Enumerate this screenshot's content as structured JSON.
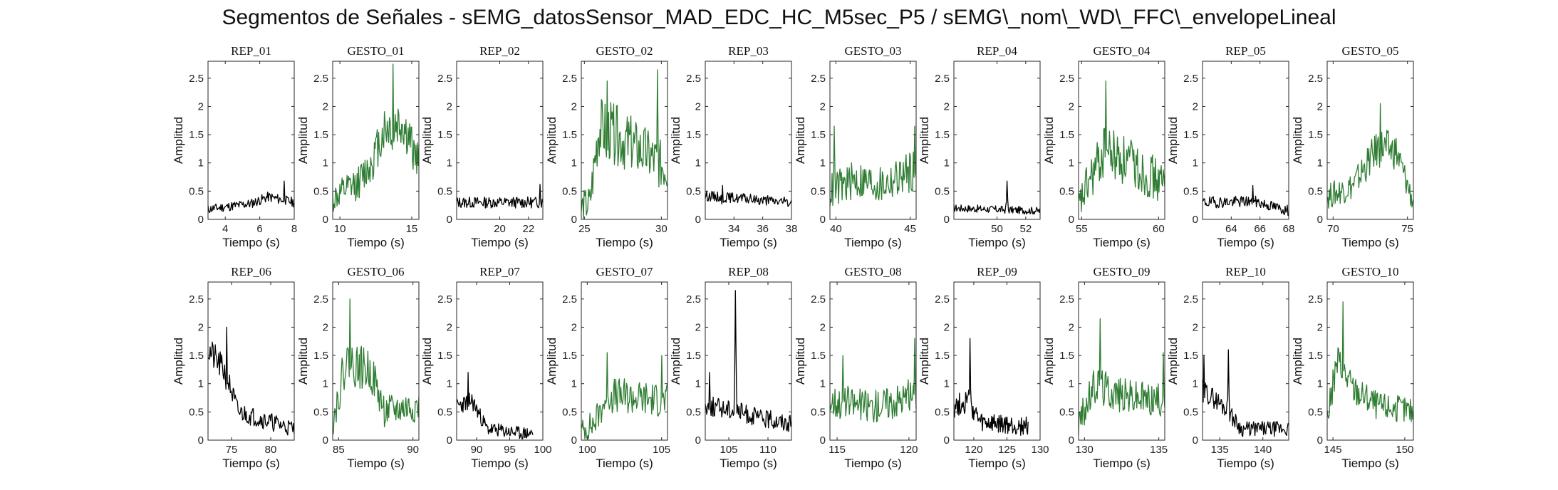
{
  "figure": {
    "title": "Segmentos de Señales - sEMG_datosSensor_MAD_EDC_HC_M5sec_P5 / sEMG\\_nom\\_WD\\_FFC\\_envelopeLineal"
  },
  "colors": {
    "rep": "#000000",
    "gesto": "#2e7d32"
  },
  "chart_data": [
    {
      "type": "line",
      "title": "REP_01",
      "xlabel": "Tiempo (s)",
      "ylabel": "Amplitud",
      "xlim": [
        3,
        8
      ],
      "ylim": [
        0,
        2.8
      ],
      "xticks": [
        4,
        6,
        8
      ],
      "yticks": [
        0,
        0.5,
        1,
        1.5,
        2,
        2.5
      ],
      "color": "#000000",
      "seed": 11,
      "profile": [
        [
          0,
          0.18
        ],
        [
          0.5,
          0.28
        ],
        [
          0.7,
          0.4
        ],
        [
          1,
          0.3
        ]
      ],
      "noise": 0.12,
      "spikes": [
        [
          0.88,
          0.68
        ]
      ]
    },
    {
      "type": "line",
      "title": "GESTO_01",
      "xlabel": "Tiempo (s)",
      "ylabel": "Amplitud",
      "xlim": [
        9.5,
        15.5
      ],
      "ylim": [
        0,
        2.8
      ],
      "xticks": [
        10,
        15
      ],
      "yticks": [
        0,
        0.5,
        1,
        1.5,
        2,
        2.5
      ],
      "color": "#2e7d32",
      "seed": 12,
      "profile": [
        [
          0,
          0.35
        ],
        [
          0.3,
          0.65
        ],
        [
          0.45,
          1.0
        ],
        [
          0.6,
          1.6
        ],
        [
          0.8,
          1.7
        ],
        [
          1,
          1.0
        ]
      ],
      "noise": 0.35,
      "spikes": [
        [
          0.7,
          2.75
        ]
      ]
    },
    {
      "type": "line",
      "title": "REP_02",
      "xlabel": "Tiempo (s)",
      "ylabel": "Amplitud",
      "xlim": [
        17,
        23
      ],
      "ylim": [
        0,
        2.8
      ],
      "xticks": [
        20,
        22
      ],
      "yticks": [
        0,
        0.5,
        1,
        1.5,
        2,
        2.5
      ],
      "color": "#000000",
      "seed": 13,
      "profile": [
        [
          0,
          0.3
        ],
        [
          1,
          0.3
        ]
      ],
      "noise": 0.14,
      "spikes": [
        [
          0.97,
          0.62
        ]
      ]
    },
    {
      "type": "line",
      "title": "GESTO_02",
      "xlabel": "Tiempo (s)",
      "ylabel": "Amplitud",
      "xlim": [
        24.8,
        30.4
      ],
      "ylim": [
        0,
        2.8
      ],
      "xticks": [
        25,
        30
      ],
      "yticks": [
        0,
        0.5,
        1,
        1.5,
        2,
        2.5
      ],
      "color": "#2e7d32",
      "seed": 14,
      "profile": [
        [
          0,
          0.2
        ],
        [
          0.1,
          0.3
        ],
        [
          0.2,
          1.6
        ],
        [
          0.4,
          1.5
        ],
        [
          0.7,
          1.2
        ],
        [
          1,
          0.9
        ]
      ],
      "noise": 0.45,
      "spikes": [
        [
          0.3,
          2.45
        ],
        [
          0.88,
          2.65
        ]
      ]
    },
    {
      "type": "line",
      "title": "REP_03",
      "xlabel": "Tiempo (s)",
      "ylabel": "Amplitud",
      "xlim": [
        32,
        38
      ],
      "ylim": [
        0,
        2.8
      ],
      "xticks": [
        34,
        36,
        38
      ],
      "yticks": [
        0,
        0.5,
        1,
        1.5,
        2,
        2.5
      ],
      "color": "#000000",
      "seed": 15,
      "profile": [
        [
          0,
          0.42
        ],
        [
          1,
          0.3
        ]
      ],
      "noise": 0.12,
      "spikes": [
        [
          0.2,
          0.6
        ]
      ]
    },
    {
      "type": "line",
      "title": "GESTO_03",
      "xlabel": "Tiempo (s)",
      "ylabel": "Amplitud",
      "xlim": [
        39.6,
        45.4
      ],
      "ylim": [
        0,
        2.8
      ],
      "xticks": [
        40,
        45
      ],
      "yticks": [
        0,
        0.5,
        1,
        1.5,
        2,
        2.5
      ],
      "color": "#2e7d32",
      "seed": 16,
      "profile": [
        [
          0,
          0.5
        ],
        [
          0.3,
          0.7
        ],
        [
          0.6,
          0.6
        ],
        [
          1,
          0.9
        ]
      ],
      "noise": 0.4,
      "spikes": [
        [
          0.05,
          1.65
        ],
        [
          0.98,
          1.65
        ]
      ]
    },
    {
      "type": "line",
      "title": "REP_04",
      "xlabel": "Tiempo (s)",
      "ylabel": "Amplitud",
      "xlim": [
        47,
        53
      ],
      "ylim": [
        0,
        2.8
      ],
      "xticks": [
        50,
        52
      ],
      "yticks": [
        0,
        0.5,
        1,
        1.5,
        2,
        2.5
      ],
      "color": "#000000",
      "seed": 17,
      "profile": [
        [
          0,
          0.2
        ],
        [
          1,
          0.15
        ]
      ],
      "noise": 0.1,
      "spikes": [
        [
          0.62,
          0.68
        ]
      ]
    },
    {
      "type": "line",
      "title": "GESTO_04",
      "xlabel": "Tiempo (s)",
      "ylabel": "Amplitud",
      "xlim": [
        54.8,
        60.4
      ],
      "ylim": [
        0,
        2.8
      ],
      "xticks": [
        55,
        60
      ],
      "yticks": [
        0,
        0.5,
        1,
        1.5,
        2,
        2.5
      ],
      "color": "#2e7d32",
      "seed": 18,
      "profile": [
        [
          0,
          0.2
        ],
        [
          0.1,
          0.6
        ],
        [
          0.3,
          1.2
        ],
        [
          0.6,
          1.0
        ],
        [
          1,
          0.6
        ]
      ],
      "noise": 0.45,
      "spikes": [
        [
          0.32,
          2.45
        ]
      ]
    },
    {
      "type": "line",
      "title": "REP_05",
      "xlabel": "Tiempo (s)",
      "ylabel": "Amplitud",
      "xlim": [
        62,
        68
      ],
      "ylim": [
        0,
        2.8
      ],
      "xticks": [
        64,
        66,
        68
      ],
      "yticks": [
        0,
        0.5,
        1,
        1.5,
        2,
        2.5
      ],
      "color": "#000000",
      "seed": 19,
      "profile": [
        [
          0,
          0.3
        ],
        [
          0.6,
          0.32
        ],
        [
          1,
          0.15
        ]
      ],
      "noise": 0.14,
      "spikes": [
        [
          0.58,
          0.6
        ]
      ]
    },
    {
      "type": "line",
      "title": "GESTO_05",
      "xlabel": "Tiempo (s)",
      "ylabel": "Amplitud",
      "xlim": [
        69.6,
        75.4
      ],
      "ylim": [
        0,
        2.8
      ],
      "xticks": [
        70,
        75
      ],
      "yticks": [
        0,
        0.5,
        1,
        1.5,
        2,
        2.5
      ],
      "color": "#2e7d32",
      "seed": 20,
      "profile": [
        [
          0,
          0.4
        ],
        [
          0.3,
          0.6
        ],
        [
          0.6,
          1.3
        ],
        [
          0.8,
          1.2
        ],
        [
          1,
          0.3
        ]
      ],
      "noise": 0.3,
      "spikes": [
        [
          0.62,
          2.05
        ]
      ]
    },
    {
      "type": "line",
      "title": "REP_06",
      "xlabel": "Tiempo (s)",
      "ylabel": "Amplitud",
      "xlim": [
        72,
        83
      ],
      "ylim": [
        0,
        2.8
      ],
      "xticks": [
        75,
        80
      ],
      "yticks": [
        0,
        0.5,
        1,
        1.5,
        2,
        2.5
      ],
      "color": "#000000",
      "seed": 21,
      "profile": [
        [
          0,
          1.6
        ],
        [
          0.2,
          1.2
        ],
        [
          0.35,
          0.5
        ],
        [
          1,
          0.2
        ]
      ],
      "noise": 0.22,
      "spikes": [
        [
          0.22,
          2.0
        ]
      ]
    },
    {
      "type": "line",
      "title": "GESTO_06",
      "xlabel": "Tiempo (s)",
      "ylabel": "Amplitud",
      "xlim": [
        84.6,
        90.4
      ],
      "ylim": [
        0,
        2.8
      ],
      "xticks": [
        85,
        90
      ],
      "yticks": [
        0,
        0.5,
        1,
        1.5,
        2,
        2.5
      ],
      "color": "#2e7d32",
      "seed": 22,
      "profile": [
        [
          0,
          0.3
        ],
        [
          0.15,
          1.4
        ],
        [
          0.45,
          1.2
        ],
        [
          0.6,
          0.5
        ],
        [
          1,
          0.6
        ]
      ],
      "noise": 0.35,
      "spikes": [
        [
          0.2,
          2.5
        ]
      ]
    },
    {
      "type": "line",
      "title": "REP_07",
      "xlabel": "Tiempo (s)",
      "ylabel": "Amplitud",
      "xlim": [
        87,
        100
      ],
      "ylim": [
        0,
        2.8
      ],
      "xticks": [
        90,
        95,
        100
      ],
      "yticks": [
        0,
        0.5,
        1,
        1.5,
        2,
        2.5
      ],
      "color": "#000000",
      "seed": 23,
      "profile": [
        [
          0,
          0.6
        ],
        [
          0.2,
          0.7
        ],
        [
          0.4,
          0.2
        ],
        [
          0.85,
          0.12
        ],
        [
          1,
          0.12
        ]
      ],
      "noise": 0.18,
      "spikes": [
        [
          0.15,
          1.2
        ]
      ],
      "xend": 98.5
    },
    {
      "type": "line",
      "title": "GESTO_07",
      "xlabel": "Tiempo (s)",
      "ylabel": "Amplitud",
      "xlim": [
        99.6,
        105.4
      ],
      "ylim": [
        0,
        2.8
      ],
      "xticks": [
        100,
        105
      ],
      "yticks": [
        0,
        0.5,
        1,
        1.5,
        2,
        2.5
      ],
      "color": "#2e7d32",
      "seed": 24,
      "profile": [
        [
          0,
          0.15
        ],
        [
          0.15,
          0.3
        ],
        [
          0.3,
          0.8
        ],
        [
          1,
          0.7
        ]
      ],
      "noise": 0.35,
      "spikes": [
        [
          0.3,
          1.55
        ],
        [
          0.93,
          1.5
        ]
      ]
    },
    {
      "type": "line",
      "title": "REP_08",
      "xlabel": "Tiempo (s)",
      "ylabel": "Amplitud",
      "xlim": [
        102,
        113
      ],
      "ylim": [
        0,
        2.8
      ],
      "xticks": [
        105,
        110
      ],
      "yticks": [
        0,
        0.5,
        1,
        1.5,
        2,
        2.5
      ],
      "color": "#000000",
      "seed": 25,
      "profile": [
        [
          0,
          0.6
        ],
        [
          0.3,
          0.55
        ],
        [
          0.6,
          0.4
        ],
        [
          1,
          0.3
        ]
      ],
      "noise": 0.22,
      "spikes": [
        [
          0.35,
          2.65
        ],
        [
          0.05,
          1.2
        ]
      ]
    },
    {
      "type": "line",
      "title": "GESTO_08",
      "xlabel": "Tiempo (s)",
      "ylabel": "Amplitud",
      "xlim": [
        114.5,
        120.5
      ],
      "ylim": [
        0,
        2.8
      ],
      "xticks": [
        115,
        120
      ],
      "yticks": [
        0,
        0.5,
        1,
        1.5,
        2,
        2.5
      ],
      "color": "#2e7d32",
      "seed": 26,
      "profile": [
        [
          0,
          0.7
        ],
        [
          0.5,
          0.6
        ],
        [
          1,
          0.8
        ]
      ],
      "noise": 0.35,
      "spikes": [
        [
          0.98,
          1.8
        ],
        [
          0.15,
          1.5
        ]
      ]
    },
    {
      "type": "line",
      "title": "REP_09",
      "xlabel": "Tiempo (s)",
      "ylabel": "Amplitud",
      "xlim": [
        117,
        130
      ],
      "ylim": [
        0,
        2.8
      ],
      "xticks": [
        120,
        125,
        130
      ],
      "yticks": [
        0,
        0.5,
        1,
        1.5,
        2,
        2.5
      ],
      "color": "#000000",
      "seed": 27,
      "profile": [
        [
          0,
          0.6
        ],
        [
          0.2,
          0.7
        ],
        [
          0.35,
          0.3
        ],
        [
          0.85,
          0.25
        ],
        [
          1,
          0.25
        ]
      ],
      "noise": 0.25,
      "spikes": [
        [
          0.22,
          1.8
        ]
      ],
      "xend": 128.2
    },
    {
      "type": "line",
      "title": "GESTO_09",
      "xlabel": "Tiempo (s)",
      "ylabel": "Amplitud",
      "xlim": [
        129.6,
        135.4
      ],
      "ylim": [
        0,
        2.8
      ],
      "xticks": [
        130,
        135
      ],
      "yticks": [
        0,
        0.5,
        1,
        1.5,
        2,
        2.5
      ],
      "color": "#2e7d32",
      "seed": 28,
      "profile": [
        [
          0,
          0.3
        ],
        [
          0.2,
          1.0
        ],
        [
          0.5,
          0.8
        ],
        [
          1,
          0.7
        ]
      ],
      "noise": 0.35,
      "spikes": [
        [
          0.25,
          2.15
        ],
        [
          0.98,
          1.55
        ]
      ]
    },
    {
      "type": "line",
      "title": "REP_10",
      "xlabel": "Tiempo (s)",
      "ylabel": "Amplitud",
      "xlim": [
        133,
        143
      ],
      "ylim": [
        0,
        2.8
      ],
      "xticks": [
        135,
        140
      ],
      "yticks": [
        0,
        0.5,
        1,
        1.5,
        2,
        2.5
      ],
      "color": "#000000",
      "seed": 29,
      "profile": [
        [
          0,
          0.9
        ],
        [
          0.25,
          0.6
        ],
        [
          0.45,
          0.2
        ],
        [
          1,
          0.2
        ]
      ],
      "noise": 0.2,
      "spikes": [
        [
          0.3,
          1.6
        ],
        [
          0.02,
          1.5
        ]
      ]
    },
    {
      "type": "line",
      "title": "GESTO_10",
      "xlabel": "Tiempo (s)",
      "ylabel": "Amplitud",
      "xlim": [
        144.6,
        150.6
      ],
      "ylim": [
        0,
        2.8
      ],
      "xticks": [
        145,
        150
      ],
      "yticks": [
        0,
        0.5,
        1,
        1.5,
        2,
        2.5
      ],
      "color": "#2e7d32",
      "seed": 30,
      "profile": [
        [
          0,
          0.4
        ],
        [
          0.12,
          1.4
        ],
        [
          0.3,
          0.9
        ],
        [
          0.6,
          0.6
        ],
        [
          1,
          0.5
        ]
      ],
      "noise": 0.3,
      "spikes": [
        [
          0.18,
          2.45
        ]
      ]
    }
  ]
}
